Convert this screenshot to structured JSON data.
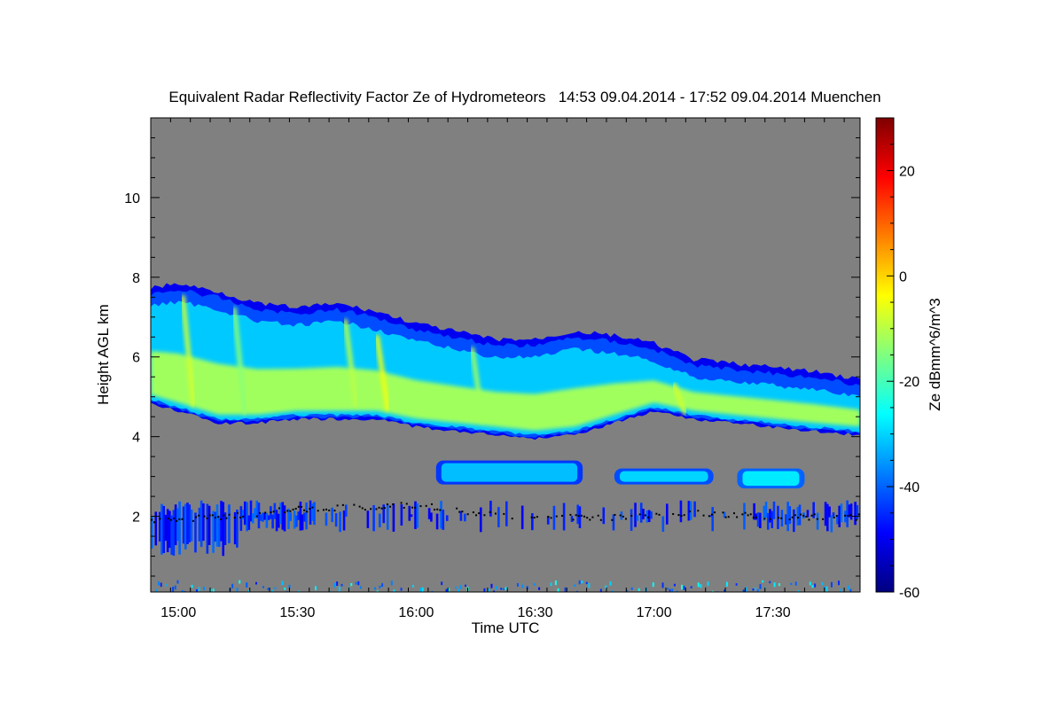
{
  "chart_data": {
    "type": "heatmap",
    "title": "Equivalent Radar Reflectivity Factor Ze of Hydrometeors   14:53 09.04.2014 - 17:52 09.04.2014 Muenchen",
    "xlabel": "Time UTC",
    "ylabel": "Height AGL km",
    "colorbar_label": "Ze dBmm^6/m^3",
    "x_range_min": [
      893,
      1072
    ],
    "x_ticks": [
      {
        "min": 900,
        "label": "15:00"
      },
      {
        "min": 930,
        "label": "15:30"
      },
      {
        "min": 960,
        "label": "16:00"
      },
      {
        "min": 990,
        "label": "16:30"
      },
      {
        "min": 1020,
        "label": "17:00"
      },
      {
        "min": 1050,
        "label": "17:30"
      }
    ],
    "y_range": [
      0.1,
      12
    ],
    "y_ticks": [
      2,
      4,
      6,
      8,
      10
    ],
    "colorbar_range": [
      -60,
      30
    ],
    "colorbar_ticks": [
      -60,
      -40,
      -20,
      0,
      20
    ],
    "colormap": [
      "#00007f",
      "#0000ff",
      "#007fff",
      "#00ffff",
      "#7fff7f",
      "#ffff00",
      "#ff7f00",
      "#ff0000",
      "#7f0000"
    ],
    "background_color": "#808080",
    "main_cloud": {
      "top": [
        [
          893,
          7.8
        ],
        [
          900,
          7.9
        ],
        [
          910,
          7.7
        ],
        [
          920,
          7.4
        ],
        [
          930,
          7.3
        ],
        [
          940,
          7.4
        ],
        [
          950,
          7.2
        ],
        [
          960,
          6.9
        ],
        [
          970,
          6.7
        ],
        [
          980,
          6.5
        ],
        [
          990,
          6.5
        ],
        [
          1000,
          6.7
        ],
        [
          1010,
          6.6
        ],
        [
          1020,
          6.4
        ],
        [
          1030,
          6.0
        ],
        [
          1040,
          5.9
        ],
        [
          1050,
          5.8
        ],
        [
          1060,
          5.7
        ],
        [
          1072,
          5.5
        ]
      ],
      "base": [
        [
          893,
          4.8
        ],
        [
          900,
          4.6
        ],
        [
          910,
          4.3
        ],
        [
          920,
          4.3
        ],
        [
          930,
          4.4
        ],
        [
          940,
          4.4
        ],
        [
          950,
          4.4
        ],
        [
          960,
          4.2
        ],
        [
          970,
          4.1
        ],
        [
          980,
          4.0
        ],
        [
          990,
          3.9
        ],
        [
          1000,
          4.0
        ],
        [
          1010,
          4.3
        ],
        [
          1020,
          4.6
        ],
        [
          1030,
          4.4
        ],
        [
          1040,
          4.3
        ],
        [
          1050,
          4.2
        ],
        [
          1060,
          4.1
        ],
        [
          1072,
          4.0
        ]
      ],
      "core_ze": -12,
      "edge_ze": -42
    },
    "fall_streaks": [
      {
        "min": 902,
        "h_top": 7.5,
        "h_bot": 4.8,
        "ze": -8
      },
      {
        "min": 915,
        "h_top": 7.2,
        "h_bot": 4.6,
        "ze": -14
      },
      {
        "min": 943,
        "h_top": 6.9,
        "h_bot": 4.8,
        "ze": -10
      },
      {
        "min": 951,
        "h_top": 6.5,
        "h_bot": 4.7,
        "ze": -5
      },
      {
        "min": 975,
        "h_top": 6.2,
        "h_bot": 4.4,
        "ze": -12
      },
      {
        "min": 1026,
        "h_top": 5.3,
        "h_bot": 4.6,
        "ze": -8
      }
    ],
    "mid_layers": [
      {
        "min_start": 965,
        "min_end": 1002,
        "h_top": 3.4,
        "h_bot": 2.8,
        "ze": -32
      },
      {
        "min_start": 1010,
        "min_end": 1035,
        "h_top": 3.2,
        "h_bot": 2.8,
        "ze": -30
      },
      {
        "min_start": 1041,
        "min_end": 1058,
        "h_top": 3.2,
        "h_bot": 2.7,
        "ze": -28
      }
    ],
    "low_layer": {
      "min_start": 893,
      "min_end": 1072,
      "h_top": 2.4,
      "h_bot": 1.6,
      "ze": -45
    },
    "surface_clutter": {
      "h_top": 0.4,
      "ze": -35
    },
    "cloud_base_line": [
      [
        893,
        1.9
      ],
      [
        910,
        2.0
      ],
      [
        930,
        2.2
      ],
      [
        960,
        2.3
      ],
      [
        985,
        2.0
      ],
      [
        1010,
        2.0
      ],
      [
        1030,
        2.1
      ],
      [
        1050,
        2.0
      ],
      [
        1072,
        2.0
      ]
    ]
  }
}
